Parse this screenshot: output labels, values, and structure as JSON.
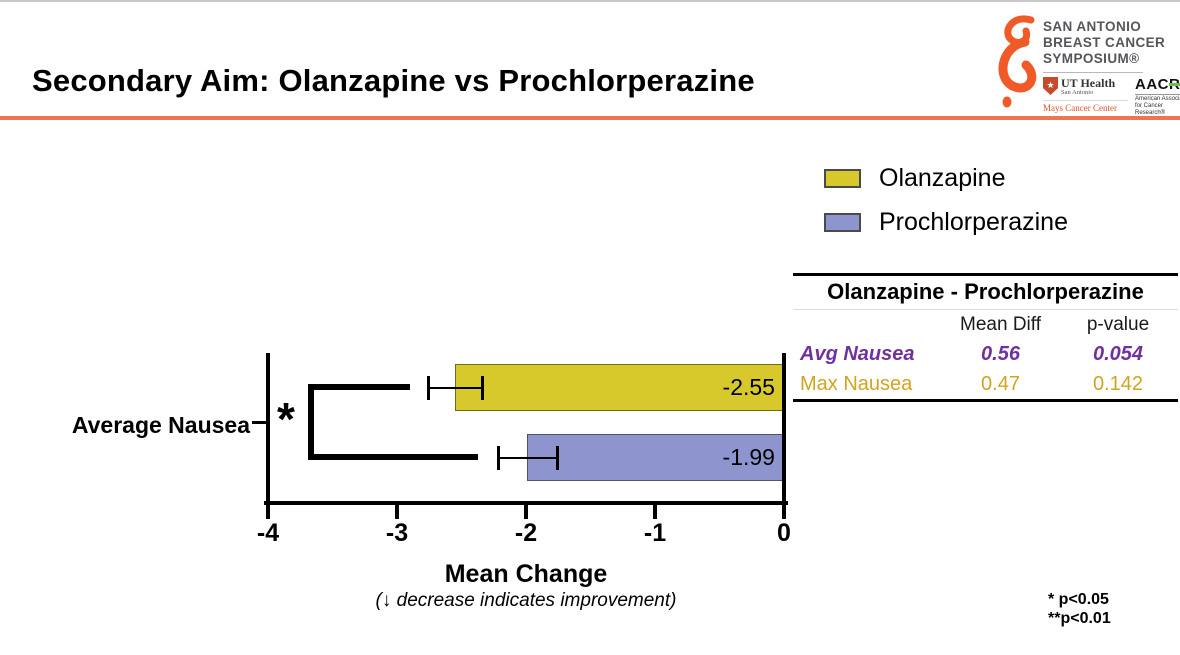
{
  "slide": {
    "title": "Secondary Aim: Olanzapine vs Prochlorperazine",
    "accent_color": "#ED7552"
  },
  "logo": {
    "org_lines": [
      "SAN ANTONIO",
      "BREAST CANCER",
      "SYMPOSIUM®"
    ],
    "ribbon_color": "#F05A28",
    "uthealth": {
      "name": "UT Health",
      "sub": "San Antonio",
      "center": "Mays Cancer Center",
      "shield_star": "★"
    },
    "aacr": {
      "abbr": "AACR",
      "sub": "American Association for Cancer Research®",
      "green": "#6CBE45"
    }
  },
  "legend": {
    "items": [
      {
        "label": "Olanzapine",
        "color": "#D7C92B"
      },
      {
        "label": "Prochlorperazine",
        "color": "#8E94CE"
      }
    ]
  },
  "table": {
    "title": "Olanzapine - Prochlorperazine",
    "columns": [
      "Mean Diff",
      "p-value"
    ],
    "rows": [
      {
        "label": "Avg Nausea",
        "mean_diff": "0.56",
        "p_value": "0.054",
        "color": "#7030A0"
      },
      {
        "label": "Max Nausea",
        "mean_diff": "0.47",
        "p_value": "0.142",
        "color": "#D2A41E"
      }
    ]
  },
  "chart_data": {
    "type": "bar",
    "orientation": "horizontal",
    "category": "Average Nausea",
    "series": [
      {
        "name": "Olanzapine",
        "value": -2.55,
        "error": 0.21,
        "color": "#D7C92B",
        "label": "-2.55"
      },
      {
        "name": "Prochlorperazine",
        "value": -1.99,
        "error": 0.23,
        "color": "#8E94CE",
        "label": "-1.99"
      }
    ],
    "xlabel": "Mean Change",
    "xlabel_note": "(↓ decrease indicates improvement)",
    "xlim": [
      -4,
      0
    ],
    "xticks": [
      "-4",
      "-3",
      "-2",
      "-1",
      "0"
    ],
    "grid": false,
    "legend_position": "top-right",
    "significance": "*"
  },
  "footnote": {
    "line1": "* p<0.05",
    "line2": "**p<0.01"
  }
}
